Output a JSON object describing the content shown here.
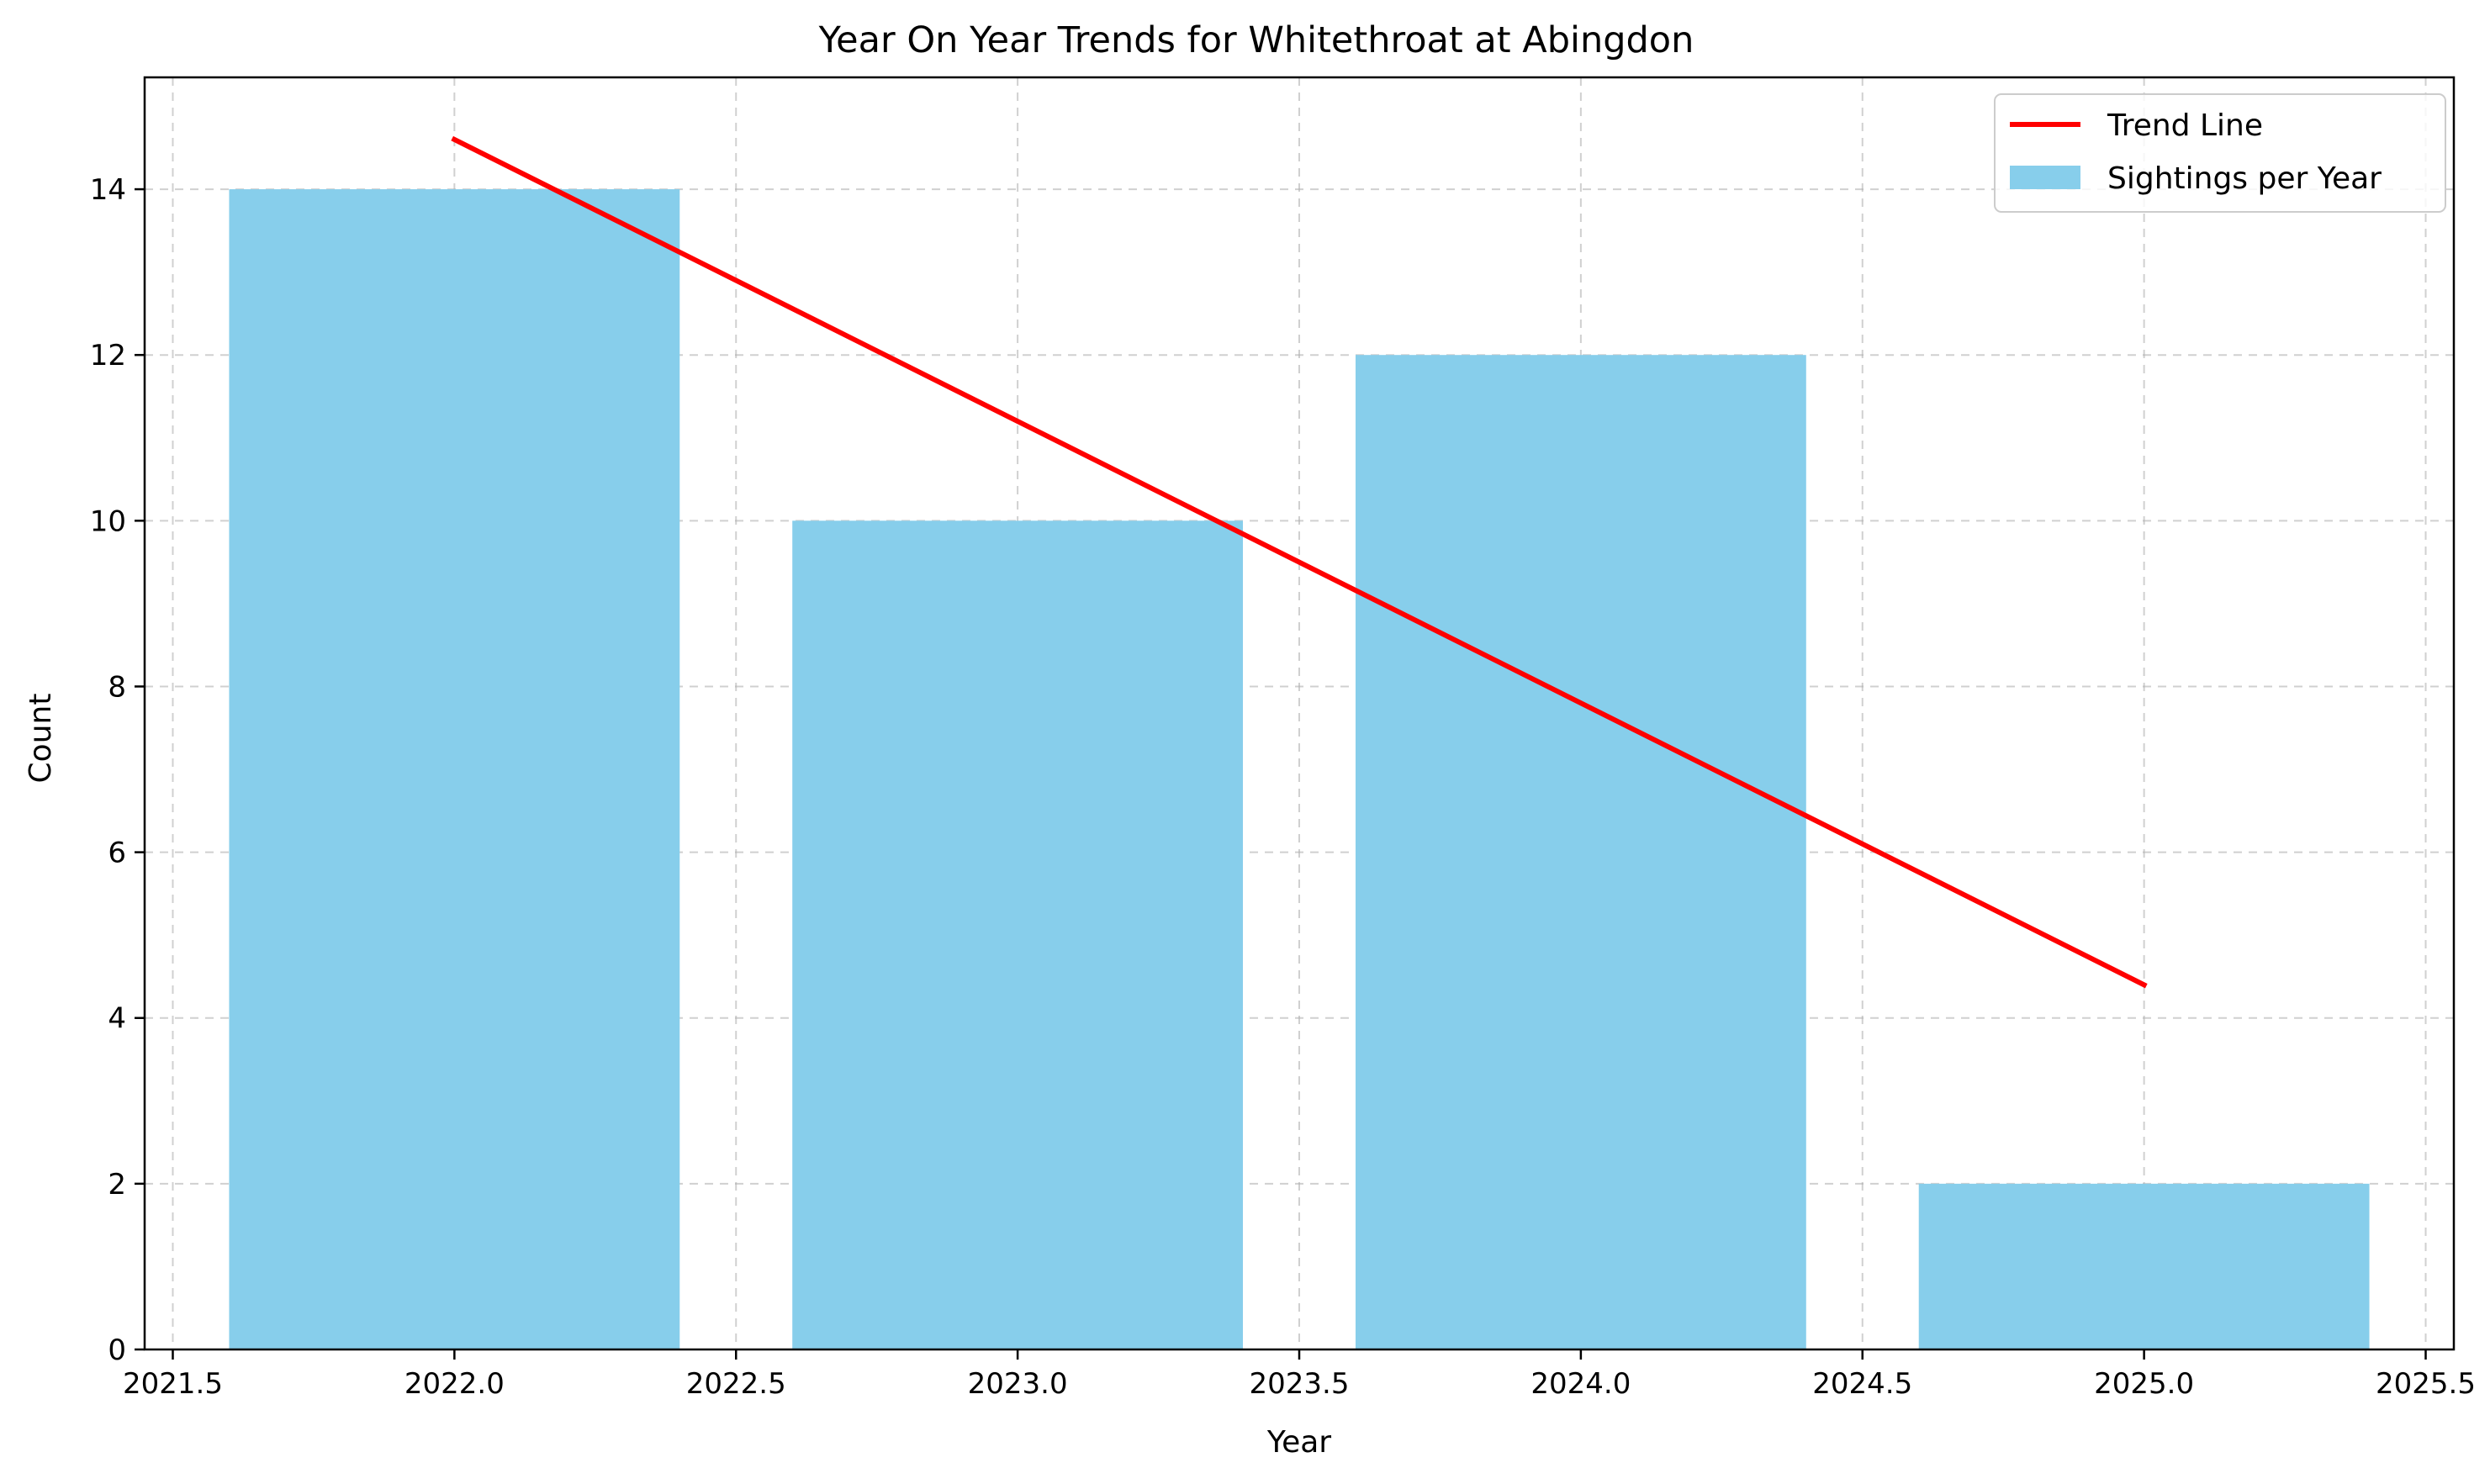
{
  "chart_data": {
    "type": "bar",
    "title": "Year On Year Trends for Whitethroat at Abingdon",
    "xlabel": "Year",
    "ylabel": "Count",
    "xlim": [
      2021.45,
      2025.55
    ],
    "ylim": [
      0,
      15.35
    ],
    "xticks": [
      2021.5,
      2022.0,
      2022.5,
      2023.0,
      2023.5,
      2024.0,
      2024.5,
      2025.0,
      2025.5
    ],
    "xtick_labels": [
      "2021.5",
      "2022.0",
      "2022.5",
      "2023.0",
      "2023.5",
      "2024.0",
      "2024.5",
      "2025.0",
      "2025.5"
    ],
    "yticks": [
      0,
      2,
      4,
      6,
      8,
      10,
      12,
      14
    ],
    "ytick_labels": [
      "0",
      "2",
      "4",
      "6",
      "8",
      "10",
      "12",
      "14"
    ],
    "grid": true,
    "legend_position": "top-right",
    "series": [
      {
        "name": "Sightings per Year",
        "type": "bar",
        "color": "#87CEEB",
        "bar_width": 0.8,
        "x": [
          2022,
          2023,
          2024,
          2025
        ],
        "values": [
          14,
          10,
          12,
          2
        ]
      },
      {
        "name": "Trend Line",
        "type": "line",
        "color": "#FF0000",
        "x": [
          2022,
          2023,
          2024,
          2025
        ],
        "values": [
          14.6,
          11.2,
          7.8,
          4.4
        ]
      }
    ],
    "legend": [
      "Trend Line",
      "Sightings per Year"
    ]
  }
}
